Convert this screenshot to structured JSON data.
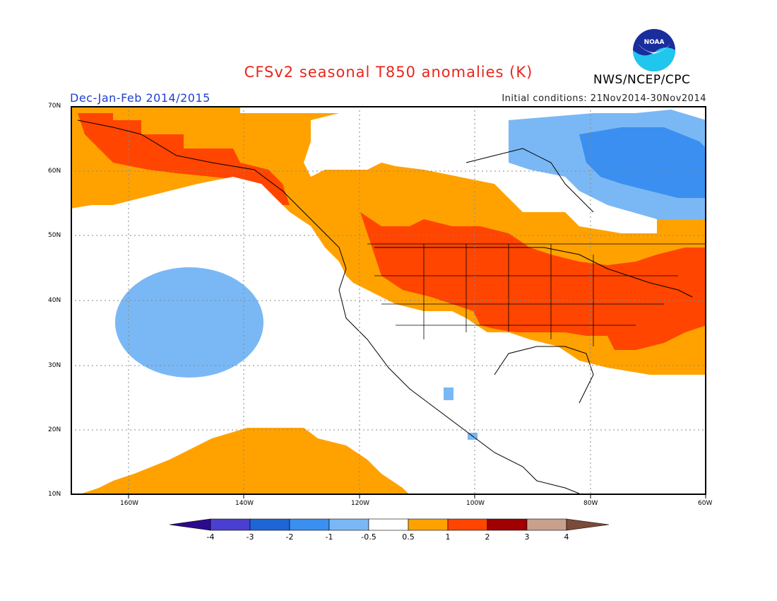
{
  "header": {
    "title": "CFSv2 seasonal T850 anomalies (K)",
    "season": "Dec-Jan-Feb 2014/2015",
    "initial_conditions": "Initial conditions: 21Nov2014-30Nov2014",
    "agency": "NWS/NCEP/CPC",
    "logo_text": "NOAA"
  },
  "map": {
    "lat_labels": [
      "70N",
      "60N",
      "50N",
      "40N",
      "30N",
      "20N",
      "10N"
    ],
    "lon_labels": [
      "160W",
      "140W",
      "120W",
      "100W",
      "80W",
      "60W"
    ],
    "extent": {
      "lon_min": -170,
      "lon_max": -60,
      "lat_min": 10,
      "lat_max": 70
    }
  },
  "colorbar": {
    "labels": [
      "-4",
      "-3",
      "-2",
      "-1",
      "-0.5",
      "0.5",
      "1",
      "2",
      "3",
      "4"
    ],
    "colors": [
      "#2d0a8c",
      "#4a3fd0",
      "#1e66d6",
      "#3a8ff0",
      "#7ab8f5",
      "#ffffff",
      "#ffa200",
      "#ff4500",
      "#a00000",
      "#c8a08c",
      "#7a4a3a"
    ]
  },
  "colors": {
    "orange": "#ffa200",
    "red": "#ff4500",
    "light_blue": "#7ab8f5",
    "blue": "#3a8ff0",
    "title_red": "#e8261c",
    "season_blue": "#1f3fd0"
  }
}
